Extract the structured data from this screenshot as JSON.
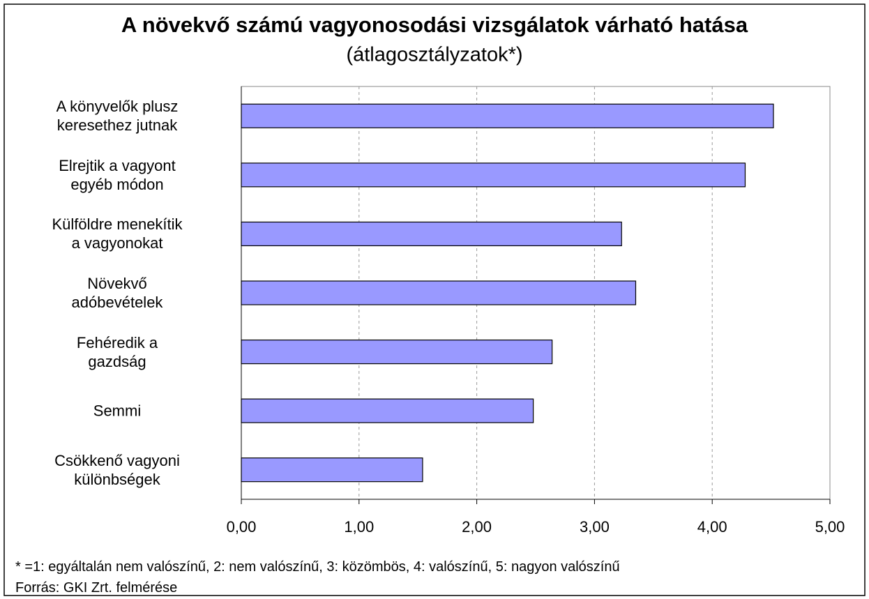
{
  "chart_data": {
    "type": "bar",
    "orientation": "horizontal",
    "title": "A növekvő számú vagyonosodási vizsgálatok várható hatása",
    "subtitle": "(átlagosztályzatok*)",
    "categories": [
      "A könyvelők plusz\nkeresethez jutnak",
      "Elrejtik a vagyont\negyéb módon",
      "Külföldre menekítik\na vagyonokat",
      "Növekvő\nadóbevételek",
      "Fehéredik a\ngazdság",
      "Semmi",
      "Csökkenő vagyoni\nkülönbségek"
    ],
    "values": [
      4.52,
      4.28,
      3.23,
      3.35,
      2.64,
      2.48,
      1.54
    ],
    "color": "#9999ff",
    "xlim": [
      0,
      5
    ],
    "xticks": [
      {
        "value": 0,
        "label": "0,00"
      },
      {
        "value": 1,
        "label": "1,00"
      },
      {
        "value": 2,
        "label": "2,00"
      },
      {
        "value": 3,
        "label": "3,00"
      },
      {
        "value": 4,
        "label": "4,00"
      },
      {
        "value": 5,
        "label": "5,00"
      }
    ],
    "grid": true,
    "footnote": "* =1: egyáltalán nem valószínű, 2: nem valószínű, 3: közömbös, 4: valószínű, 5: nagyon valószínű",
    "source": "Forrás: GKI Zrt. felmérése"
  }
}
